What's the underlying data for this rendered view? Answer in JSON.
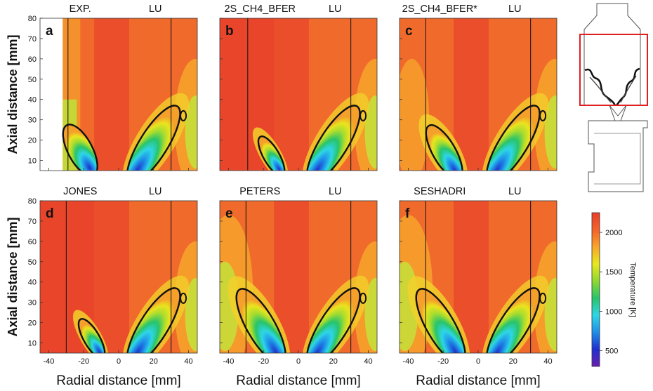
{
  "chart_data": {
    "type": "heatmap",
    "x_axis": {
      "label": "Radial distance [mm]",
      "range": [
        -45,
        45
      ],
      "ticks": [
        -40,
        -20,
        0,
        20,
        40
      ],
      "tick_labels": [
        "-40",
        "-20",
        "0",
        "20",
        "40"
      ]
    },
    "y_axis": {
      "label": "Axial distance [mm]",
      "range": [
        5,
        80
      ],
      "ticks": [
        10,
        20,
        30,
        40,
        50,
        60,
        70,
        80
      ],
      "tick_labels": [
        "10",
        "20",
        "30",
        "40",
        "50",
        "60",
        "70",
        "80"
      ]
    },
    "panels": [
      {
        "letter": "a",
        "left_title": "EXP.",
        "right_title": "LU",
        "left_cut": -29,
        "left_variant": "exp"
      },
      {
        "letter": "b",
        "left_title": "2S_CH4_BFER",
        "right_title": "LU",
        "left_cut": -29,
        "left_variant": "narrow"
      },
      {
        "letter": "c",
        "left_title": "2S_CH4_BFER*",
        "right_title": "LU",
        "left_cut": -30,
        "left_variant": "medium"
      },
      {
        "letter": "d",
        "left_title": "JONES",
        "right_title": "LU",
        "left_cut": -30,
        "left_variant": "narrow"
      },
      {
        "letter": "e",
        "left_title": "PETERS",
        "right_title": "LU",
        "left_cut": -30,
        "left_variant": "wide"
      },
      {
        "letter": "f",
        "left_title": "SESHADRI",
        "right_title": "LU",
        "left_cut": -30,
        "left_variant": "wide"
      }
    ],
    "right_cut": 30,
    "colorbar": {
      "label": "Temperature [K]",
      "range": [
        300,
        2250
      ],
      "ticks": [
        500,
        1000,
        1500,
        2000
      ],
      "tick_labels": [
        "500",
        "1000",
        "1500",
        "2000"
      ],
      "colors": [
        "#6a1fb0",
        "#1f2fd0",
        "#1e8fe8",
        "#2ed6e6",
        "#28c46a",
        "#8fd830",
        "#e8e820",
        "#f8a52a",
        "#f4622a",
        "#e8402a"
      ]
    },
    "inset": {
      "description_marker": "burner-geometry",
      "highlight_color": "#e02020"
    }
  }
}
